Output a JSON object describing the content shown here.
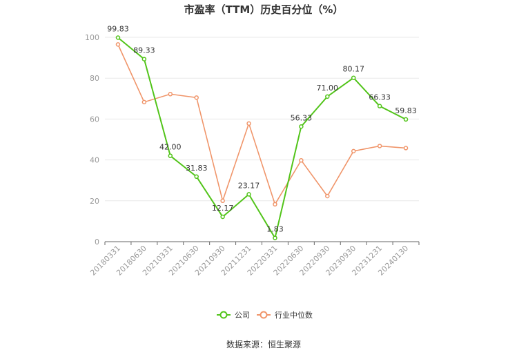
{
  "chart_data": {
    "type": "line",
    "title": "市盈率（TTM）历史百分位（%）",
    "categories": [
      "20180331",
      "20180630",
      "20210331",
      "20210630",
      "20210930",
      "20211231",
      "20220331",
      "20220630",
      "20220930",
      "20230930",
      "20231231",
      "20240130"
    ],
    "series": [
      {
        "name": "公司",
        "values": [
          99.83,
          89.33,
          42.0,
          31.83,
          12.17,
          23.17,
          1.83,
          56.33,
          71.0,
          80.17,
          66.33,
          59.83
        ],
        "labels": [
          "99.83",
          "89.33",
          "42.00",
          "31.83",
          "12.17",
          "23.17",
          "1.83",
          "56.33",
          "71.00",
          "80.17",
          "66.33",
          "59.83"
        ],
        "color": "#52c41a"
      },
      {
        "name": "行业中位数",
        "values": [
          96.5,
          68.3,
          72.2,
          70.5,
          20.0,
          57.8,
          18.3,
          39.8,
          22.3,
          44.3,
          46.8,
          45.8
        ],
        "color": "#f0956a"
      }
    ],
    "yticks": [
      "0",
      "20",
      "40",
      "60",
      "80",
      "100"
    ],
    "ylim": [
      0,
      100
    ],
    "legend_position": "bottom-center",
    "grid": true
  },
  "footer": {
    "source": "数据来源：恒生聚源"
  }
}
